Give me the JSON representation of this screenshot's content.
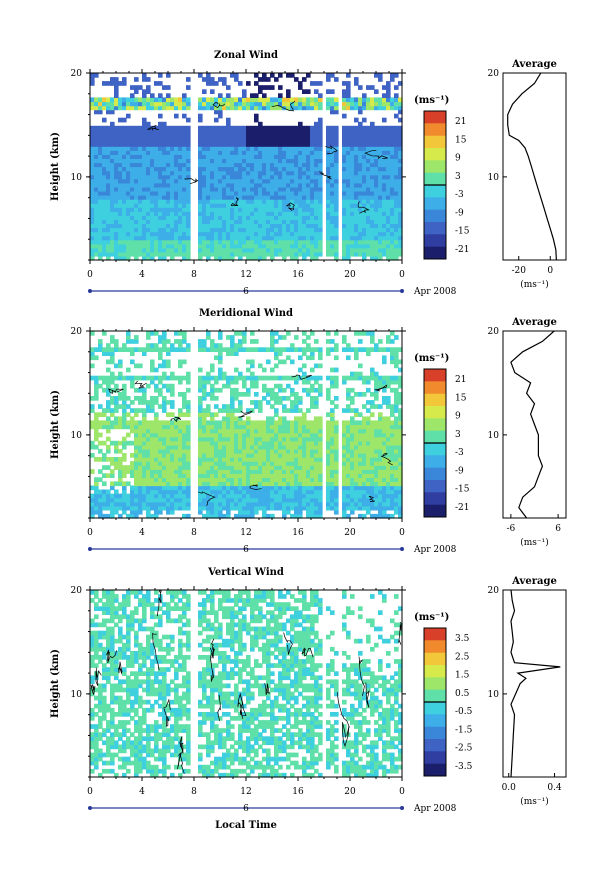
{
  "chart_data": [
    {
      "type": "heatmap",
      "title": "Zonal Wind",
      "ylabel": "Height (km)",
      "yticks": [
        "10",
        "20"
      ],
      "ylim": [
        2,
        20
      ],
      "xticks": [
        "0",
        "4",
        "8",
        "12",
        "16",
        "20",
        "0"
      ],
      "xlim": [
        0,
        24
      ],
      "date_day": "6",
      "date_label": "Apr 2008",
      "colorbar": {
        "unit": "(ms⁻¹)",
        "ticks": [
          "21",
          "15",
          "9",
          "3",
          "-3",
          "-9",
          "-15",
          "-21"
        ]
      },
      "average": {
        "title": "Average",
        "xlabel": "(ms⁻¹)",
        "xticks": [
          "-20",
          "0"
        ],
        "yticks": [
          "10",
          "20"
        ],
        "xlim": [
          -30,
          10
        ],
        "profile": [
          [
            3.9,
            2
          ],
          [
            3.5,
            3
          ],
          [
            2,
            4
          ],
          [
            0,
            5
          ],
          [
            -2,
            6
          ],
          [
            -4,
            7
          ],
          [
            -6,
            8
          ],
          [
            -8,
            9
          ],
          [
            -10,
            10
          ],
          [
            -12,
            11
          ],
          [
            -14,
            12
          ],
          [
            -16,
            12.8
          ],
          [
            -20,
            13.5
          ],
          [
            -26,
            14
          ],
          [
            -27,
            15
          ],
          [
            -27,
            16
          ],
          [
            -24,
            17
          ],
          [
            -18,
            18
          ],
          [
            -10,
            19
          ],
          [
            -6,
            20
          ]
        ]
      }
    },
    {
      "type": "heatmap",
      "title": "Meridional Wind",
      "ylabel": "Height (km)",
      "yticks": [
        "10",
        "20"
      ],
      "ylim": [
        2,
        20
      ],
      "xticks": [
        "0",
        "4",
        "8",
        "12",
        "16",
        "20",
        "0"
      ],
      "xlim": [
        0,
        24
      ],
      "date_day": "6",
      "date_label": "Apr 2008",
      "colorbar": {
        "unit": "(ms⁻¹)",
        "ticks": [
          "21",
          "15",
          "9",
          "3",
          "-3",
          "-9",
          "-15",
          "-21"
        ]
      },
      "average": {
        "title": "Average",
        "xlabel": "(ms⁻¹)",
        "xticks": [
          "-6",
          "6"
        ],
        "yticks": [
          "10",
          "20"
        ],
        "xlim": [
          -8,
          8
        ],
        "profile": [
          [
            -2,
            2
          ],
          [
            -4,
            3
          ],
          [
            -3,
            4
          ],
          [
            0,
            5
          ],
          [
            1,
            6
          ],
          [
            2,
            7
          ],
          [
            1,
            8
          ],
          [
            1,
            9
          ],
          [
            1,
            10
          ],
          [
            0,
            11
          ],
          [
            -1,
            12
          ],
          [
            0,
            13
          ],
          [
            -2,
            14
          ],
          [
            -1,
            15
          ],
          [
            -5,
            16
          ],
          [
            -6,
            17
          ],
          [
            -3,
            18
          ],
          [
            2,
            19
          ],
          [
            5,
            20
          ]
        ]
      }
    },
    {
      "type": "heatmap",
      "title": "Vertical Wind",
      "ylabel": "Height (km)",
      "yticks": [
        "10",
        "20"
      ],
      "ylim": [
        2,
        20
      ],
      "xticks": [
        "0",
        "4",
        "8",
        "12",
        "16",
        "20",
        "0"
      ],
      "xlim": [
        0,
        24
      ],
      "date_day": "6",
      "date_label": "Apr 2008",
      "xlabel": "Local Time",
      "colorbar": {
        "unit": "(ms⁻¹)",
        "ticks": [
          "3.5",
          "2.5",
          "1.5",
          "0.5",
          "-0.5",
          "-1.5",
          "-2.5",
          "-3.5"
        ]
      },
      "average": {
        "title": "Average",
        "xlabel": "(ms⁻¹)",
        "xticks": [
          "0.0",
          "0.4"
        ],
        "yticks": [
          "10",
          "20"
        ],
        "xlim": [
          -0.05,
          0.5
        ],
        "profile": [
          [
            0.02,
            2
          ],
          [
            0.03,
            4
          ],
          [
            0.04,
            6
          ],
          [
            0.05,
            8
          ],
          [
            0.02,
            9
          ],
          [
            0.06,
            10
          ],
          [
            0.1,
            11
          ],
          [
            0.15,
            11.5
          ],
          [
            0.08,
            12
          ],
          [
            0.45,
            12.6
          ],
          [
            0.05,
            13
          ],
          [
            0.02,
            14
          ],
          [
            0.04,
            15
          ],
          [
            0.03,
            16
          ],
          [
            0.02,
            17
          ],
          [
            0.05,
            18
          ],
          [
            0.03,
            19
          ],
          [
            0.02,
            20
          ]
        ]
      }
    }
  ],
  "colors": {
    "scale": [
      "#1b1f6b",
      "#2f3ea0",
      "#3f63c5",
      "#3a86d9",
      "#3daee8",
      "#3fd0e0",
      "#5fe0a8",
      "#9ee66a",
      "#d6ea4c",
      "#f3c73a",
      "#f08a2c",
      "#d8402a"
    ]
  }
}
